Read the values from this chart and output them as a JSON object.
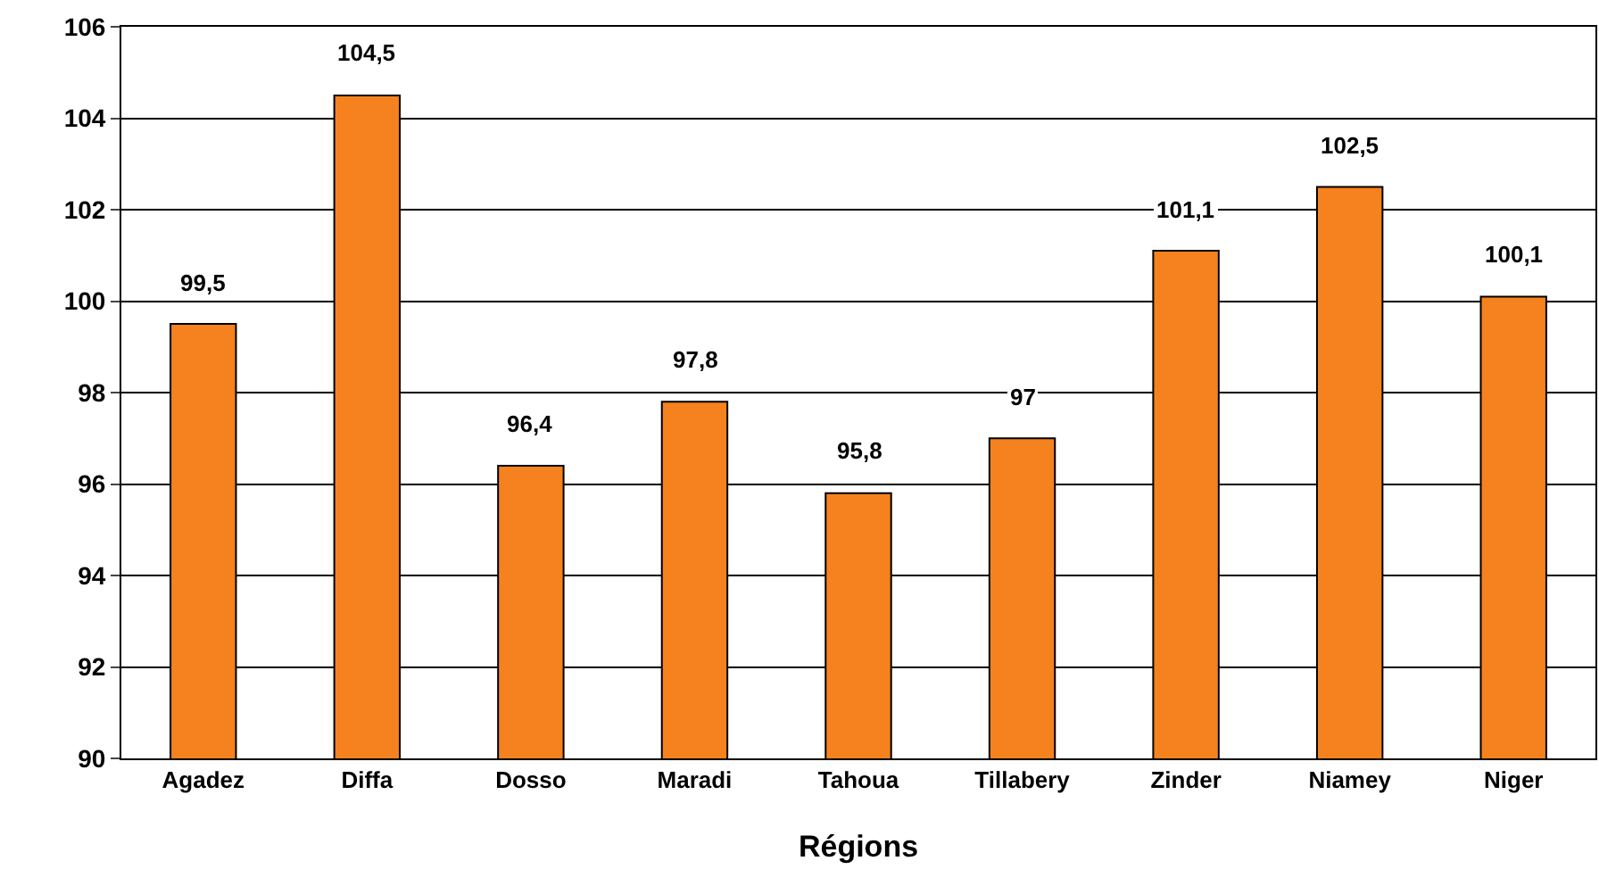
{
  "chart_data": {
    "type": "bar",
    "xlabel": "Régions",
    "categories": [
      "Agadez",
      "Diffa",
      "Dosso",
      "Maradi",
      "Tahoua",
      "Tillabery",
      "Zinder",
      "Niamey",
      "Niger"
    ],
    "values": [
      99.5,
      104.5,
      96.4,
      97.8,
      95.8,
      97,
      101.1,
      102.5,
      100.1
    ],
    "value_labels": [
      "99,5",
      "104,5",
      "96,4",
      "97,8",
      "95,8",
      "97",
      "101,1",
      "102,5",
      "100,1"
    ],
    "color": "#f5821f",
    "ylim": [
      90,
      106
    ],
    "yticks": [
      90,
      92,
      94,
      96,
      98,
      100,
      102,
      104,
      106
    ],
    "grid": "y"
  }
}
